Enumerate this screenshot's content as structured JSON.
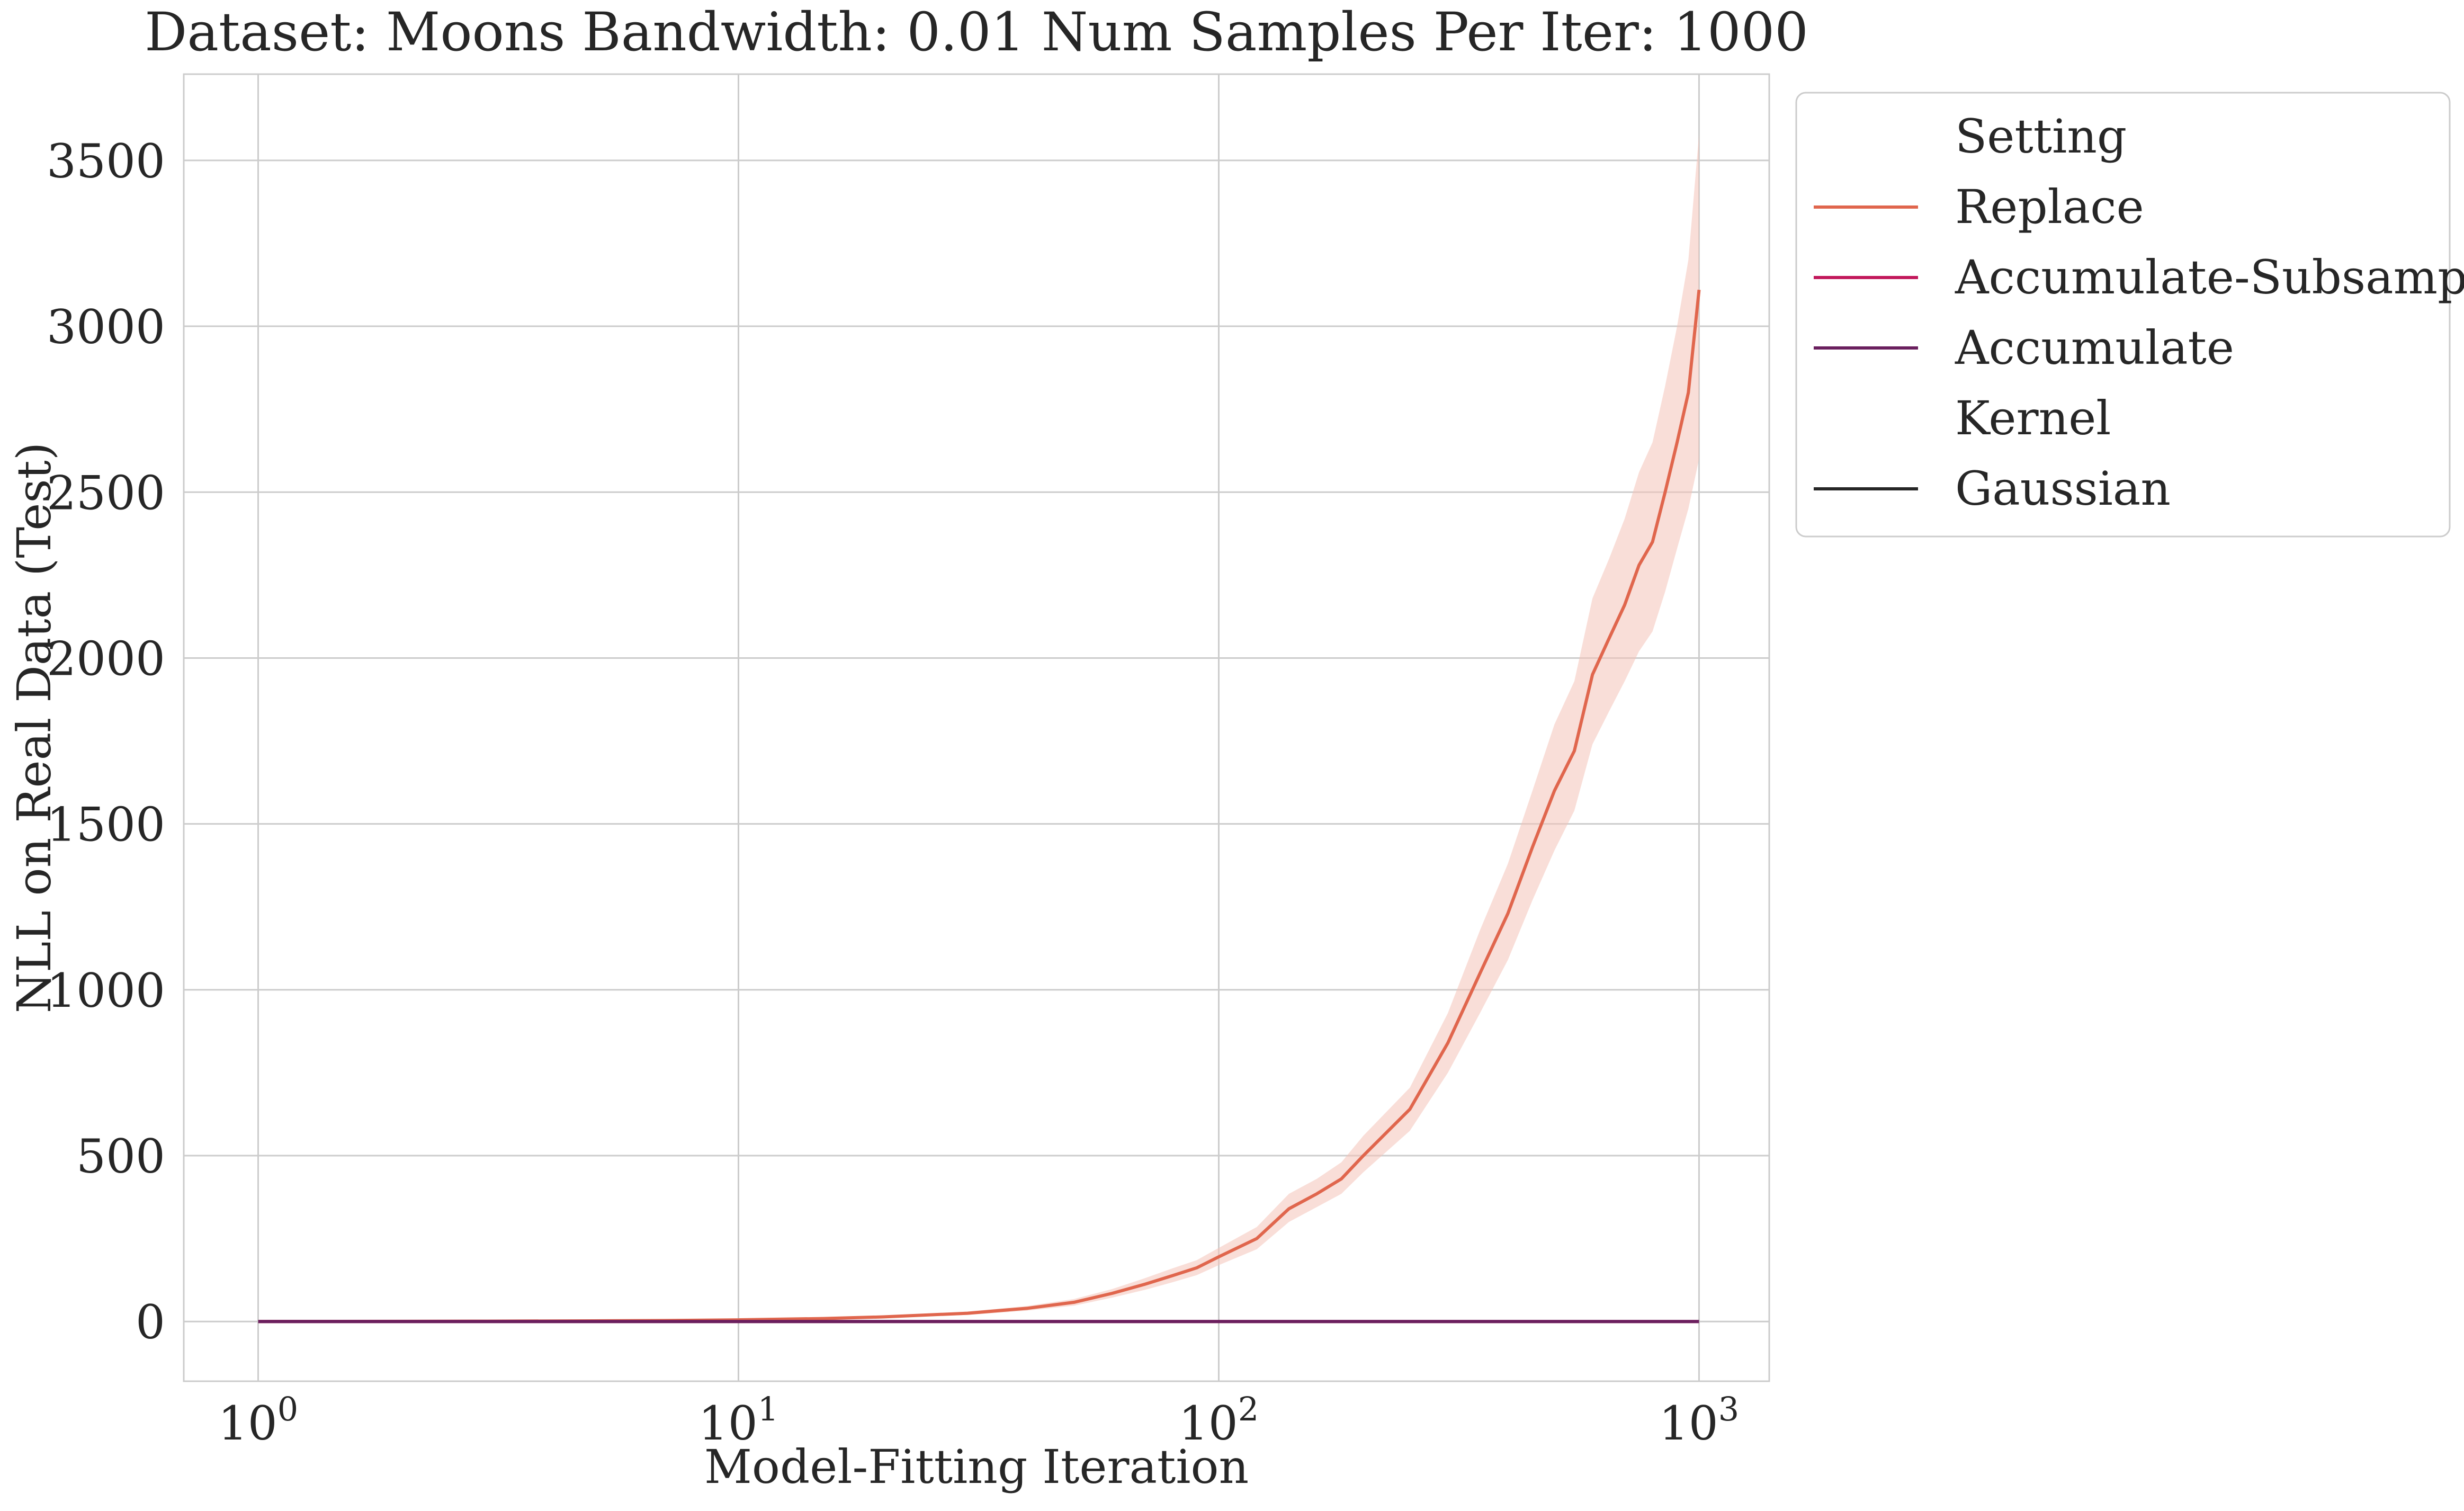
{
  "chart_data": {
    "type": "line",
    "title": "Dataset: Moons Bandwidth: 0.01 Num Samples Per Iter: 1000",
    "xlabel": "Model-Fitting Iteration",
    "ylabel": "NLL on Real Data (Test)",
    "xscale": "log",
    "xlim": [
      0.7,
      1400
    ],
    "ylim": [
      -180,
      3760
    ],
    "xticks": [
      {
        "value": 1,
        "base": "10",
        "exp": "0"
      },
      {
        "value": 10,
        "base": "10",
        "exp": "1"
      },
      {
        "value": 100,
        "base": "10",
        "exp": "2"
      },
      {
        "value": 1000,
        "base": "10",
        "exp": "3"
      }
    ],
    "yticks": [
      0,
      500,
      1000,
      1500,
      2000,
      2500,
      3000,
      3500
    ],
    "grid": true,
    "legend": {
      "placement": "outside-right",
      "entries": [
        {
          "label": "Setting",
          "kind": "header"
        },
        {
          "label": "Replace",
          "color": "#e0664d",
          "kind": "line"
        },
        {
          "label": "Accumulate-Subsample",
          "color": "#c2185b",
          "kind": "line"
        },
        {
          "label": "Accumulate",
          "color": "#6a1f5e",
          "kind": "line"
        },
        {
          "label": "Kernel",
          "kind": "header"
        },
        {
          "label": "Gaussian",
          "color": "#262626",
          "kind": "line"
        }
      ]
    },
    "series": [
      {
        "name": "Replace",
        "color": "#e0664d",
        "band_color": "#f4c3b8",
        "x": [
          1,
          2,
          3,
          5,
          7,
          10,
          15,
          20,
          30,
          40,
          50,
          60,
          70,
          80,
          90,
          100,
          120,
          140,
          160,
          180,
          200,
          250,
          300,
          350,
          400,
          450,
          500,
          550,
          600,
          650,
          700,
          750,
          800,
          850,
          900,
          950,
          1000
        ],
        "y": [
          0,
          0.5,
          1,
          2,
          3,
          5,
          9,
          14,
          25,
          40,
          58,
          85,
          112,
          138,
          162,
          195,
          250,
          340,
          385,
          430,
          500,
          640,
          840,
          1050,
          1230,
          1430,
          1600,
          1720,
          1950,
          2060,
          2160,
          2280,
          2350,
          2500,
          2650,
          2800,
          3110
        ],
        "lower": [
          0,
          0.4,
          0.8,
          1.6,
          2.4,
          4,
          7,
          11,
          20,
          33,
          48,
          72,
          95,
          118,
          140,
          170,
          218,
          300,
          345,
          385,
          450,
          575,
          750,
          930,
          1090,
          1270,
          1420,
          1540,
          1740,
          1840,
          1930,
          2020,
          2080,
          2200,
          2330,
          2450,
          2600
        ],
        "upper": [
          0,
          0.6,
          1.2,
          2.4,
          3.6,
          6,
          11,
          17,
          30,
          47,
          68,
          98,
          130,
          160,
          185,
          222,
          285,
          385,
          430,
          480,
          560,
          705,
          930,
          1180,
          1380,
          1600,
          1800,
          1930,
          2180,
          2300,
          2420,
          2560,
          2650,
          2820,
          3000,
          3200,
          3580
        ]
      },
      {
        "name": "Accumulate-Subsample",
        "color": "#c2185b",
        "x": [
          1,
          10,
          100,
          1000
        ],
        "y": [
          0,
          0,
          0,
          0
        ]
      },
      {
        "name": "Accumulate",
        "color": "#6a1f5e",
        "x": [
          1,
          10,
          100,
          1000
        ],
        "y": [
          0,
          0,
          0,
          0
        ]
      }
    ]
  }
}
